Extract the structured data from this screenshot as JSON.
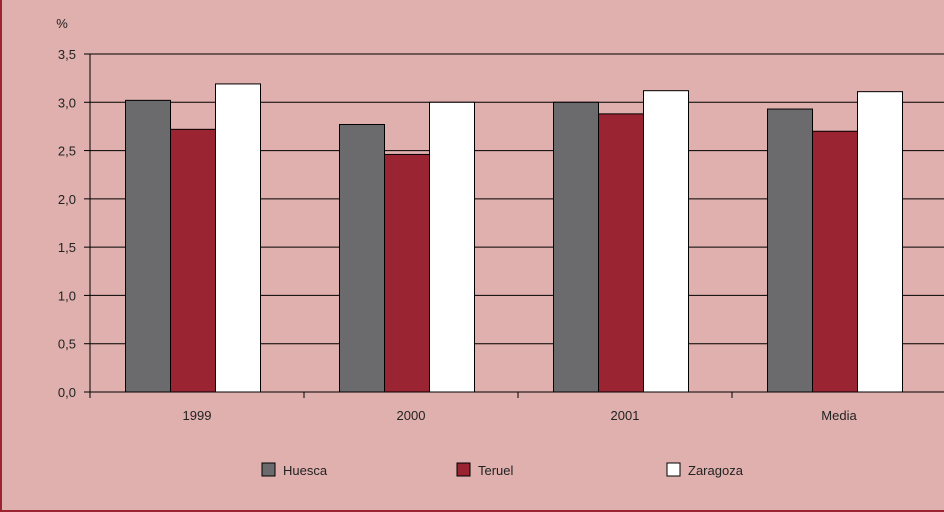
{
  "chart_data": {
    "type": "bar",
    "ylabel": "%",
    "ylim": [
      0,
      3.5
    ],
    "yticks": [
      "0,0",
      "0,5",
      "1,0",
      "1,5",
      "2,0",
      "2,5",
      "3,0",
      "3,5"
    ],
    "yticks_values": [
      0,
      0.5,
      1.0,
      1.5,
      2.0,
      2.5,
      3.0,
      3.5
    ],
    "categories": [
      "1999",
      "2000",
      "2001",
      "Media"
    ],
    "series": [
      {
        "name": "Huesca",
        "color": "#6b6b6e",
        "values": [
          3.02,
          2.77,
          3.0,
          2.93
        ]
      },
      {
        "name": "Teruel",
        "color": "#9a2432",
        "values": [
          2.72,
          2.46,
          2.88,
          2.7
        ]
      },
      {
        "name": "Zaragoza",
        "color": "#ffffff",
        "values": [
          3.19,
          3.0,
          3.12,
          3.11
        ]
      }
    ],
    "grid": true,
    "legend_position": "bottom"
  },
  "colors": {
    "background": "#dfb0ad",
    "accent": "#9a2432"
  }
}
